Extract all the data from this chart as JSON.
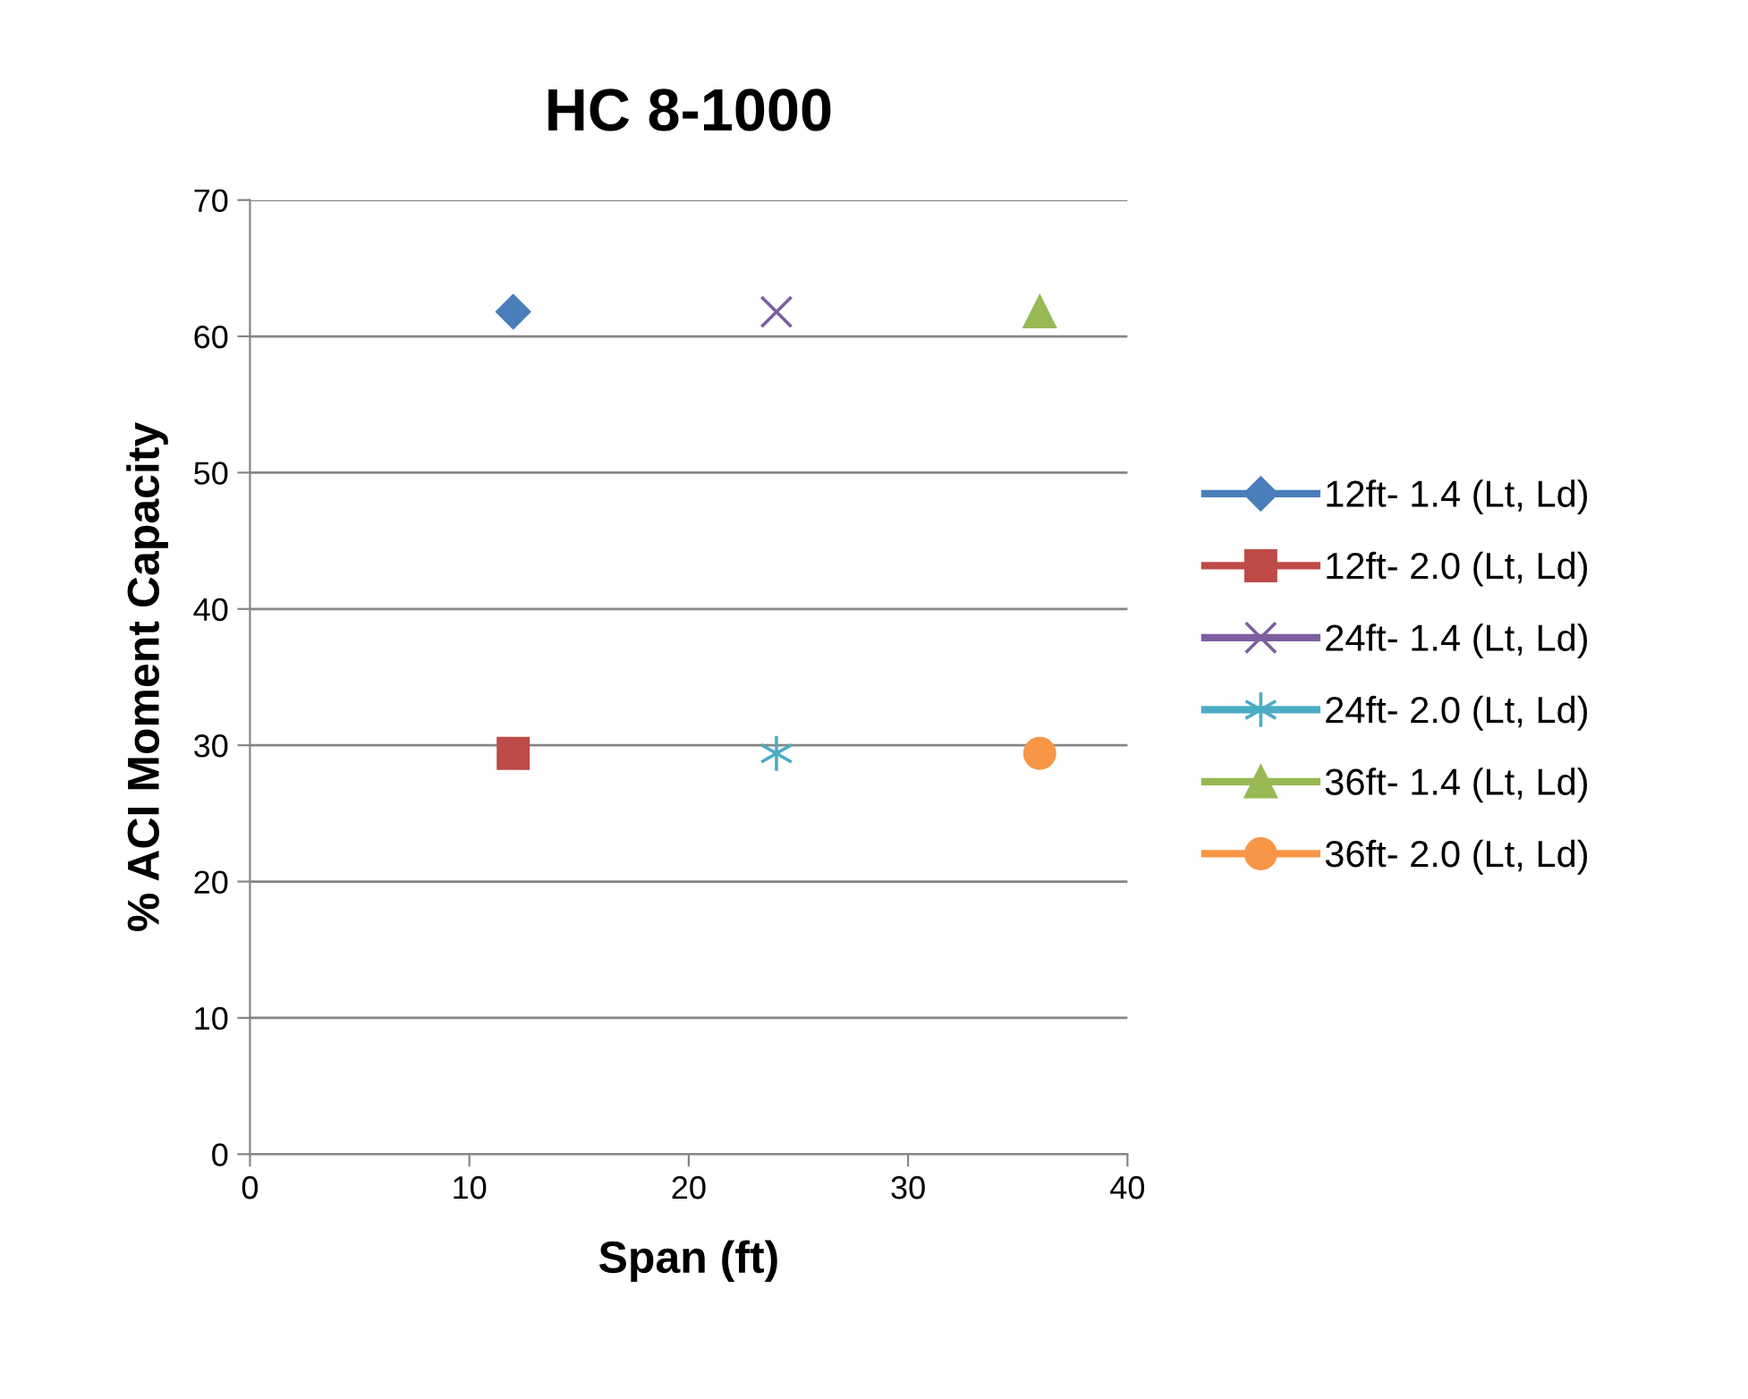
{
  "chart_data": {
    "type": "line",
    "title": "HC 8-1000",
    "xlabel": "Span (ft)",
    "ylabel": "% ACI Moment Capacity",
    "xlim": [
      0,
      40
    ],
    "xticks": [
      0,
      10,
      20,
      30,
      40
    ],
    "ylim": [
      0,
      70
    ],
    "yticks": [
      0,
      10,
      20,
      30,
      40,
      50,
      60,
      70
    ],
    "grid": "y",
    "legend": "right",
    "series": [
      {
        "name": "12ft- 1.4 (Lt, Ld)",
        "color": "#4a7ebb",
        "marker": "diamond",
        "x": [
          12
        ],
        "values": [
          61.8
        ]
      },
      {
        "name": "12ft- 2.0 (Lt, Ld)",
        "color": "#be4b48",
        "marker": "square",
        "x": [
          12
        ],
        "values": [
          29.4
        ]
      },
      {
        "name": "24ft- 1.4 (Lt, Ld)",
        "color": "#7d5fa0",
        "marker": "cross",
        "x": [
          24
        ],
        "values": [
          61.8
        ]
      },
      {
        "name": "24ft- 2.0 (Lt, Ld)",
        "color": "#4bacc6",
        "marker": "cross",
        "x": [
          24
        ],
        "values": [
          29.4
        ]
      },
      {
        "name": "36ft- 1.4 (Lt, Ld)",
        "color": "#98b954",
        "marker": "triangle",
        "x": [
          36
        ],
        "values": [
          61.8
        ]
      },
      {
        "name": "36ft- 2.0 (Lt, Ld)",
        "color": "#f79646",
        "marker": "circle",
        "x": [
          36
        ],
        "values": [
          29.4
        ]
      }
    ]
  }
}
